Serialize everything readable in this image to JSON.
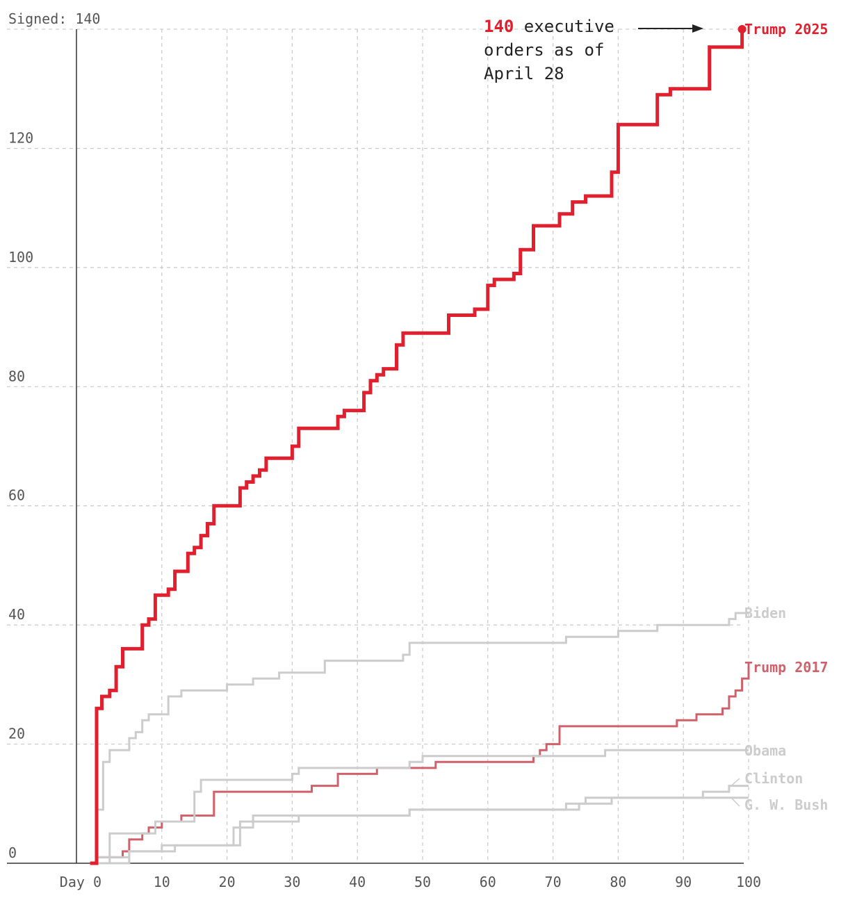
{
  "chart_data": {
    "type": "line",
    "step": true,
    "xlabel": "Day",
    "ylabel": "Signed",
    "xlim": [
      -3,
      100
    ],
    "ylim": [
      0,
      140
    ],
    "x_ticks": [
      0,
      10,
      20,
      30,
      40,
      50,
      60,
      70,
      80,
      90,
      100
    ],
    "y_ticks": [
      0,
      20,
      40,
      60,
      80,
      100,
      120,
      140
    ],
    "y_tick_labels": [
      "0",
      "20",
      "40",
      "60",
      "80",
      "100",
      "120",
      "Signed: 140"
    ],
    "x_tick_labels": [
      "Day 0",
      "10",
      "20",
      "30",
      "40",
      "50",
      "60",
      "70",
      "80",
      "90",
      "100"
    ],
    "grid": true,
    "annotation": {
      "number": "140",
      "line1_rest": " executive",
      "line2": "orders as of",
      "line3": "April 28"
    },
    "series": [
      {
        "name": "Trump 2025",
        "color": "#e0202e",
        "highlight": true,
        "points": [
          [
            -1,
            0
          ],
          [
            0,
            26
          ],
          [
            0.8,
            28
          ],
          [
            2,
            29
          ],
          [
            3,
            33
          ],
          [
            4,
            36
          ],
          [
            7,
            40
          ],
          [
            8,
            41
          ],
          [
            9,
            45
          ],
          [
            11,
            46
          ],
          [
            12,
            49
          ],
          [
            14,
            52
          ],
          [
            15,
            53
          ],
          [
            16,
            55
          ],
          [
            17,
            57
          ],
          [
            18,
            60
          ],
          [
            22,
            63
          ],
          [
            23,
            64
          ],
          [
            24,
            65
          ],
          [
            25,
            66
          ],
          [
            26,
            68
          ],
          [
            30,
            70
          ],
          [
            31,
            73
          ],
          [
            37,
            75
          ],
          [
            38,
            76
          ],
          [
            41,
            79
          ],
          [
            42,
            81
          ],
          [
            43,
            82
          ],
          [
            44,
            83
          ],
          [
            46,
            87
          ],
          [
            47,
            89
          ],
          [
            54,
            92
          ],
          [
            58,
            93
          ],
          [
            60,
            97
          ],
          [
            61,
            98
          ],
          [
            64,
            99
          ],
          [
            65,
            103
          ],
          [
            67,
            107
          ],
          [
            71,
            109
          ],
          [
            73,
            111
          ],
          [
            75,
            112
          ],
          [
            79,
            116
          ],
          [
            80,
            124
          ],
          [
            86,
            129
          ],
          [
            88,
            130
          ],
          [
            94,
            137
          ],
          [
            99,
            140
          ]
        ]
      },
      {
        "name": "Biden",
        "color": "#cccccc",
        "points": [
          [
            -1,
            0
          ],
          [
            0,
            9
          ],
          [
            1,
            17
          ],
          [
            2,
            19
          ],
          [
            5,
            21
          ],
          [
            6,
            22
          ],
          [
            7,
            24
          ],
          [
            8,
            25
          ],
          [
            11,
            28
          ],
          [
            13,
            29
          ],
          [
            20,
            30
          ],
          [
            24,
            31
          ],
          [
            28,
            32
          ],
          [
            35,
            34
          ],
          [
            47,
            35
          ],
          [
            48,
            37
          ],
          [
            72,
            38
          ],
          [
            80,
            39
          ],
          [
            86,
            40
          ],
          [
            97,
            41
          ],
          [
            98,
            42
          ],
          [
            100,
            42
          ]
        ]
      },
      {
        "name": "Trump 2017",
        "color": "#d0606a",
        "points": [
          [
            -1,
            0
          ],
          [
            0,
            1
          ],
          [
            4,
            2
          ],
          [
            5,
            4
          ],
          [
            7,
            5
          ],
          [
            8,
            6
          ],
          [
            10,
            7
          ],
          [
            13,
            8
          ],
          [
            18,
            12
          ],
          [
            33,
            13
          ],
          [
            37,
            15
          ],
          [
            43,
            16
          ],
          [
            52,
            17
          ],
          [
            67,
            18
          ],
          [
            68,
            19
          ],
          [
            69,
            20
          ],
          [
            71,
            23
          ],
          [
            89,
            24
          ],
          [
            92,
            25
          ],
          [
            96,
            26
          ],
          [
            97,
            28
          ],
          [
            98,
            29
          ],
          [
            99,
            31
          ],
          [
            100,
            33
          ]
        ]
      },
      {
        "name": "Obama",
        "color": "#cccccc",
        "points": [
          [
            -1,
            0
          ],
          [
            0,
            1
          ],
          [
            2,
            5
          ],
          [
            9,
            7
          ],
          [
            15,
            12
          ],
          [
            16,
            14
          ],
          [
            30,
            15
          ],
          [
            31,
            16
          ],
          [
            48,
            17
          ],
          [
            50,
            18
          ],
          [
            78,
            19
          ],
          [
            100,
            19
          ]
        ]
      },
      {
        "name": "Clinton",
        "color": "#cccccc",
        "points": [
          [
            -1,
            0
          ],
          [
            2,
            1
          ],
          [
            5,
            2
          ],
          [
            12,
            3
          ],
          [
            21,
            6
          ],
          [
            24,
            8
          ],
          [
            48,
            9
          ],
          [
            72,
            10
          ],
          [
            79,
            11
          ],
          [
            93,
            12
          ],
          [
            97,
            13
          ],
          [
            100,
            13
          ]
        ]
      },
      {
        "name": "G. W. Bush",
        "color": "#cccccc",
        "points": [
          [
            -1,
            0
          ],
          [
            5,
            2
          ],
          [
            10,
            3
          ],
          [
            22,
            7
          ],
          [
            31,
            8
          ],
          [
            48,
            9
          ],
          [
            71,
            9
          ],
          [
            74,
            10
          ],
          [
            75,
            11
          ],
          [
            89,
            11
          ],
          [
            100,
            11
          ]
        ]
      }
    ]
  }
}
